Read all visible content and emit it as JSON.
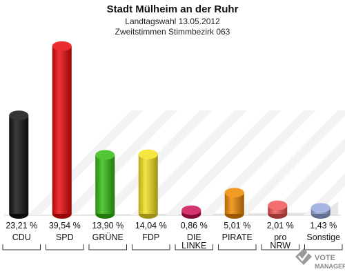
{
  "chart_data": {
    "type": "bar",
    "title": "Stadt Mülheim an der Ruhr",
    "subtitle": "Landtagswahl 13.05.2012",
    "subtitle2": "Zweitstimmen Stimmbezirk 063",
    "categories": [
      [
        "CDU"
      ],
      [
        "SPD"
      ],
      [
        "GRÜNE"
      ],
      [
        "FDP"
      ],
      [
        "DIE",
        "LINKE"
      ],
      [
        "PIRATE"
      ],
      [
        "pro",
        "NRW"
      ],
      [
        "Sonstige"
      ]
    ],
    "values": [
      23.21,
      39.54,
      13.9,
      14.04,
      0.86,
      5.01,
      2.01,
      1.43
    ],
    "value_labels": [
      "23,21 %",
      "39,54 %",
      "13,90 %",
      "14,04 %",
      "0,86 %",
      "5,01 %",
      "2,01 %",
      "1,43 %"
    ],
    "colors": [
      "#111111",
      "#e8070a",
      "#33bb11",
      "#f2e020",
      "#cc1155",
      "#ee8800",
      "#ee5555",
      "#99aadd"
    ],
    "ylim": [
      0,
      40
    ],
    "grid": false,
    "legend": "none"
  },
  "logo": {
    "line1": "VOTE",
    "line2": "MANAGER",
    "icon": "ballot-check-icon"
  }
}
